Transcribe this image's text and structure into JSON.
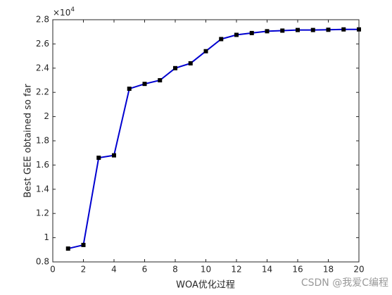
{
  "chart_data": {
    "type": "line",
    "x_label": "WOA优化过程",
    "y_label": "Best GEE obtained so far",
    "y_multiplier_base": "×10",
    "y_multiplier_exp": "4",
    "x": [
      1,
      2,
      3,
      4,
      5,
      6,
      7,
      8,
      9,
      10,
      11,
      12,
      13,
      14,
      15,
      16,
      17,
      18,
      19,
      20
    ],
    "series": [
      {
        "color": "#0000d0",
        "marker_color": "#000000",
        "values": [
          0.91,
          0.94,
          1.66,
          1.68,
          2.23,
          2.27,
          2.3,
          2.4,
          2.44,
          2.54,
          2.64,
          2.675,
          2.69,
          2.705,
          2.71,
          2.715,
          2.715,
          2.717,
          2.72,
          2.72
        ]
      }
    ],
    "xlim": [
      0,
      20
    ],
    "xticks": [
      0,
      2,
      4,
      6,
      8,
      10,
      12,
      14,
      16,
      18,
      20
    ],
    "ylim": [
      0.8,
      2.8
    ],
    "yticks": [
      0.8,
      1,
      1.2,
      1.4,
      1.6,
      1.8,
      2,
      2.2,
      2.4,
      2.6,
      2.8
    ],
    "grid": false,
    "watermark": "CSDN @我爱C编程"
  }
}
